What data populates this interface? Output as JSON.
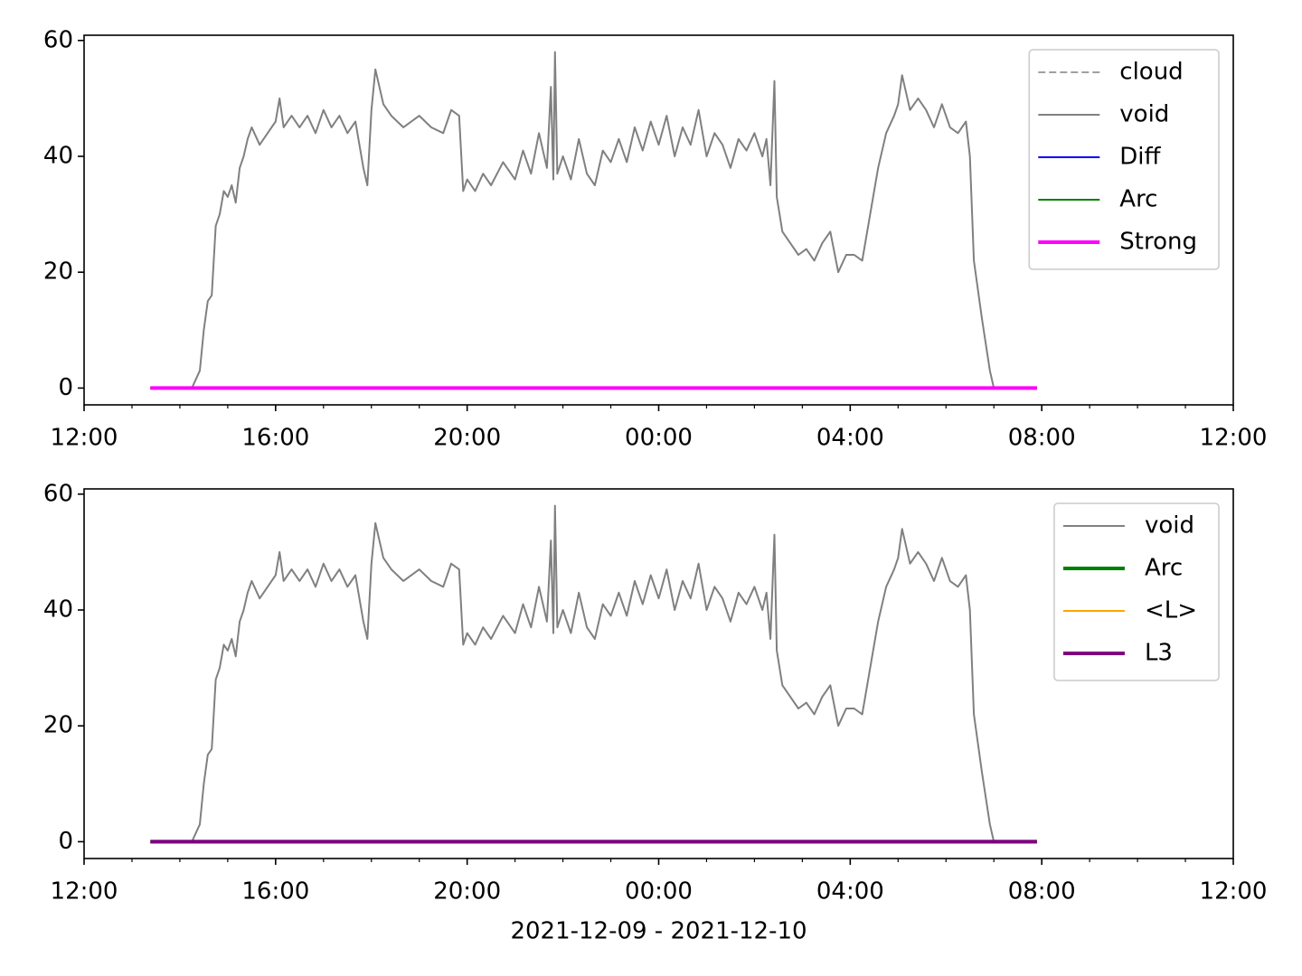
{
  "chart_data": [
    {
      "type": "line",
      "xlim": [
        "2021-12-09T12:00",
        "2021-12-10T12:00"
      ],
      "xticks": [
        {
          "value": "2021-12-09T12:00",
          "label": "12:00"
        },
        {
          "value": "2021-12-09T16:00",
          "label": "16:00"
        },
        {
          "value": "2021-12-09T20:00",
          "label": "20:00"
        },
        {
          "value": "2021-12-10T00:00",
          "label": "00:00"
        },
        {
          "value": "2021-12-10T04:00",
          "label": "04:00"
        },
        {
          "value": "2021-12-10T08:00",
          "label": "08:00"
        },
        {
          "value": "2021-12-10T12:00",
          "label": "12:00"
        }
      ],
      "xminorticks": [
        "2021-12-09T13:00",
        "2021-12-09T14:00",
        "2021-12-09T15:00",
        "2021-12-09T17:00",
        "2021-12-09T18:00",
        "2021-12-09T19:00",
        "2021-12-09T21:00",
        "2021-12-09T22:00",
        "2021-12-09T23:00",
        "2021-12-10T01:00",
        "2021-12-10T02:00",
        "2021-12-10T03:00",
        "2021-12-10T05:00",
        "2021-12-10T06:00",
        "2021-12-10T07:00",
        "2021-12-10T09:00",
        "2021-12-10T10:00",
        "2021-12-10T11:00"
      ],
      "ylim": [
        -2.9,
        60.9
      ],
      "yticks": [
        0,
        20,
        40,
        60
      ],
      "legend": "upper right",
      "series": [
        {
          "name": "cloud",
          "color": "#808080",
          "linewidth": 1.5,
          "linestyle": "dashed",
          "x": [
            "2021-12-09T13:23",
            "2021-12-10T07:54"
          ],
          "values": [
            0,
            0
          ]
        },
        {
          "name": "void",
          "color": "#808080",
          "linewidth": 2,
          "linestyle": "solid",
          "x": [
            "2021-12-09T13:23",
            "2021-12-09T14:00",
            "2021-12-09T14:15",
            "2021-12-09T14:25",
            "2021-12-09T14:30",
            "2021-12-09T14:35",
            "2021-12-09T14:40",
            "2021-12-09T14:45",
            "2021-12-09T14:50",
            "2021-12-09T14:55",
            "2021-12-09T15:00",
            "2021-12-09T15:05",
            "2021-12-09T15:10",
            "2021-12-09T15:15",
            "2021-12-09T15:20",
            "2021-12-09T15:25",
            "2021-12-09T15:30",
            "2021-12-09T15:40",
            "2021-12-09T15:50",
            "2021-12-09T16:00",
            "2021-12-09T16:05",
            "2021-12-09T16:10",
            "2021-12-09T16:20",
            "2021-12-09T16:30",
            "2021-12-09T16:40",
            "2021-12-09T16:50",
            "2021-12-09T17:00",
            "2021-12-09T17:10",
            "2021-12-09T17:20",
            "2021-12-09T17:30",
            "2021-12-09T17:40",
            "2021-12-09T17:50",
            "2021-12-09T17:55",
            "2021-12-09T18:00",
            "2021-12-09T18:05",
            "2021-12-09T18:15",
            "2021-12-09T18:25",
            "2021-12-09T18:40",
            "2021-12-09T19:00",
            "2021-12-09T19:15",
            "2021-12-09T19:30",
            "2021-12-09T19:40",
            "2021-12-09T19:50",
            "2021-12-09T19:55",
            "2021-12-09T20:00",
            "2021-12-09T20:10",
            "2021-12-09T20:20",
            "2021-12-09T20:30",
            "2021-12-09T20:45",
            "2021-12-09T21:00",
            "2021-12-09T21:10",
            "2021-12-09T21:20",
            "2021-12-09T21:30",
            "2021-12-09T21:40",
            "2021-12-09T21:45",
            "2021-12-09T21:48",
            "2021-12-09T21:50",
            "2021-12-09T21:53",
            "2021-12-09T22:00",
            "2021-12-09T22:10",
            "2021-12-09T22:20",
            "2021-12-09T22:30",
            "2021-12-09T22:40",
            "2021-12-09T22:50",
            "2021-12-09T23:00",
            "2021-12-09T23:10",
            "2021-12-09T23:20",
            "2021-12-09T23:30",
            "2021-12-09T23:40",
            "2021-12-09T23:50",
            "2021-12-10T00:00",
            "2021-12-10T00:10",
            "2021-12-10T00:20",
            "2021-12-10T00:30",
            "2021-12-10T00:40",
            "2021-12-10T00:50",
            "2021-12-10T01:00",
            "2021-12-10T01:10",
            "2021-12-10T01:20",
            "2021-12-10T01:30",
            "2021-12-10T01:40",
            "2021-12-10T01:50",
            "2021-12-10T02:00",
            "2021-12-10T02:10",
            "2021-12-10T02:15",
            "2021-12-10T02:20",
            "2021-12-10T02:25",
            "2021-12-10T02:28",
            "2021-12-10T02:35",
            "2021-12-10T02:45",
            "2021-12-10T02:55",
            "2021-12-10T03:05",
            "2021-12-10T03:15",
            "2021-12-10T03:25",
            "2021-12-10T03:35",
            "2021-12-10T03:45",
            "2021-12-10T03:55",
            "2021-12-10T04:05",
            "2021-12-10T04:15",
            "2021-12-10T04:25",
            "2021-12-10T04:35",
            "2021-12-10T04:45",
            "2021-12-10T04:55",
            "2021-12-10T05:00",
            "2021-12-10T05:05",
            "2021-12-10T05:15",
            "2021-12-10T05:25",
            "2021-12-10T05:35",
            "2021-12-10T05:45",
            "2021-12-10T05:55",
            "2021-12-10T06:05",
            "2021-12-10T06:15",
            "2021-12-10T06:25",
            "2021-12-10T06:30",
            "2021-12-10T06:35",
            "2021-12-10T06:45",
            "2021-12-10T06:55",
            "2021-12-10T07:00",
            "2021-12-10T07:54"
          ],
          "values": [
            0,
            0,
            0,
            3,
            10,
            15,
            16,
            28,
            30,
            34,
            33,
            35,
            32,
            38,
            40,
            43,
            45,
            42,
            44,
            46,
            50,
            45,
            47,
            45,
            47,
            44,
            48,
            45,
            47,
            44,
            46,
            38,
            35,
            48,
            55,
            49,
            47,
            45,
            47,
            45,
            44,
            48,
            47,
            34,
            36,
            34,
            37,
            35,
            39,
            36,
            41,
            37,
            44,
            38,
            52,
            36,
            58,
            37,
            40,
            36,
            43,
            37,
            35,
            41,
            39,
            43,
            39,
            45,
            41,
            46,
            42,
            47,
            40,
            45,
            42,
            48,
            40,
            44,
            42,
            38,
            43,
            41,
            44,
            40,
            43,
            35,
            53,
            33,
            27,
            25,
            23,
            24,
            22,
            25,
            27,
            20,
            23,
            23,
            22,
            30,
            38,
            44,
            47,
            49,
            54,
            48,
            50,
            48,
            45,
            49,
            45,
            44,
            46,
            40,
            22,
            12,
            3,
            0,
            0
          ]
        },
        {
          "name": "Diff",
          "color": "#0000ff",
          "linewidth": 2,
          "linestyle": "solid",
          "x": [
            "2021-12-09T13:23",
            "2021-12-10T07:54"
          ],
          "values": [
            0,
            0
          ]
        },
        {
          "name": "Arc",
          "color": "#008000",
          "linewidth": 2,
          "linestyle": "solid",
          "x": [
            "2021-12-09T13:23",
            "2021-12-10T07:54"
          ],
          "values": [
            0,
            0
          ]
        },
        {
          "name": "Strong",
          "color": "#ff00ff",
          "linewidth": 4,
          "linestyle": "solid",
          "x": [
            "2021-12-09T13:23",
            "2021-12-10T07:54"
          ],
          "values": [
            0,
            0
          ]
        }
      ]
    },
    {
      "type": "line",
      "x_label": "2021-12-09 - 2021-12-10",
      "xlim": [
        "2021-12-09T12:00",
        "2021-12-10T12:00"
      ],
      "xticks": [
        {
          "value": "2021-12-09T12:00",
          "label": "12:00"
        },
        {
          "value": "2021-12-09T16:00",
          "label": "16:00"
        },
        {
          "value": "2021-12-09T20:00",
          "label": "20:00"
        },
        {
          "value": "2021-12-10T00:00",
          "label": "00:00"
        },
        {
          "value": "2021-12-10T04:00",
          "label": "04:00"
        },
        {
          "value": "2021-12-10T08:00",
          "label": "08:00"
        },
        {
          "value": "2021-12-10T12:00",
          "label": "12:00"
        }
      ],
      "xminorticks": [
        "2021-12-09T13:00",
        "2021-12-09T14:00",
        "2021-12-09T15:00",
        "2021-12-09T17:00",
        "2021-12-09T18:00",
        "2021-12-09T19:00",
        "2021-12-09T21:00",
        "2021-12-09T22:00",
        "2021-12-09T23:00",
        "2021-12-10T01:00",
        "2021-12-10T02:00",
        "2021-12-10T03:00",
        "2021-12-10T05:00",
        "2021-12-10T06:00",
        "2021-12-10T07:00",
        "2021-12-10T09:00",
        "2021-12-10T10:00",
        "2021-12-10T11:00"
      ],
      "ylim": [
        -2.9,
        60.9
      ],
      "yticks": [
        0,
        20,
        40,
        60
      ],
      "legend": "upper right",
      "series": [
        {
          "name": "void",
          "color": "#808080",
          "linewidth": 2,
          "linestyle": "solid",
          "x": [
            "2021-12-09T13:23",
            "2021-12-09T14:00",
            "2021-12-09T14:15",
            "2021-12-09T14:25",
            "2021-12-09T14:30",
            "2021-12-09T14:35",
            "2021-12-09T14:40",
            "2021-12-09T14:45",
            "2021-12-09T14:50",
            "2021-12-09T14:55",
            "2021-12-09T15:00",
            "2021-12-09T15:05",
            "2021-12-09T15:10",
            "2021-12-09T15:15",
            "2021-12-09T15:20",
            "2021-12-09T15:25",
            "2021-12-09T15:30",
            "2021-12-09T15:40",
            "2021-12-09T15:50",
            "2021-12-09T16:00",
            "2021-12-09T16:05",
            "2021-12-09T16:10",
            "2021-12-09T16:20",
            "2021-12-09T16:30",
            "2021-12-09T16:40",
            "2021-12-09T16:50",
            "2021-12-09T17:00",
            "2021-12-09T17:10",
            "2021-12-09T17:20",
            "2021-12-09T17:30",
            "2021-12-09T17:40",
            "2021-12-09T17:50",
            "2021-12-09T17:55",
            "2021-12-09T18:00",
            "2021-12-09T18:05",
            "2021-12-09T18:15",
            "2021-12-09T18:25",
            "2021-12-09T18:40",
            "2021-12-09T19:00",
            "2021-12-09T19:15",
            "2021-12-09T19:30",
            "2021-12-09T19:40",
            "2021-12-09T19:50",
            "2021-12-09T19:55",
            "2021-12-09T20:00",
            "2021-12-09T20:10",
            "2021-12-09T20:20",
            "2021-12-09T20:30",
            "2021-12-09T20:45",
            "2021-12-09T21:00",
            "2021-12-09T21:10",
            "2021-12-09T21:20",
            "2021-12-09T21:30",
            "2021-12-09T21:40",
            "2021-12-09T21:45",
            "2021-12-09T21:48",
            "2021-12-09T21:50",
            "2021-12-09T21:53",
            "2021-12-09T22:00",
            "2021-12-09T22:10",
            "2021-12-09T22:20",
            "2021-12-09T22:30",
            "2021-12-09T22:40",
            "2021-12-09T22:50",
            "2021-12-09T23:00",
            "2021-12-09T23:10",
            "2021-12-09T23:20",
            "2021-12-09T23:30",
            "2021-12-09T23:40",
            "2021-12-09T23:50",
            "2021-12-10T00:00",
            "2021-12-10T00:10",
            "2021-12-10T00:20",
            "2021-12-10T00:30",
            "2021-12-10T00:40",
            "2021-12-10T00:50",
            "2021-12-10T01:00",
            "2021-12-10T01:10",
            "2021-12-10T01:20",
            "2021-12-10T01:30",
            "2021-12-10T01:40",
            "2021-12-10T01:50",
            "2021-12-10T02:00",
            "2021-12-10T02:10",
            "2021-12-10T02:15",
            "2021-12-10T02:20",
            "2021-12-10T02:25",
            "2021-12-10T02:28",
            "2021-12-10T02:35",
            "2021-12-10T02:45",
            "2021-12-10T02:55",
            "2021-12-10T03:05",
            "2021-12-10T03:15",
            "2021-12-10T03:25",
            "2021-12-10T03:35",
            "2021-12-10T03:45",
            "2021-12-10T03:55",
            "2021-12-10T04:05",
            "2021-12-10T04:15",
            "2021-12-10T04:25",
            "2021-12-10T04:35",
            "2021-12-10T04:45",
            "2021-12-10T04:55",
            "2021-12-10T05:00",
            "2021-12-10T05:05",
            "2021-12-10T05:15",
            "2021-12-10T05:25",
            "2021-12-10T05:35",
            "2021-12-10T05:45",
            "2021-12-10T05:55",
            "2021-12-10T06:05",
            "2021-12-10T06:15",
            "2021-12-10T06:25",
            "2021-12-10T06:30",
            "2021-12-10T06:35",
            "2021-12-10T06:45",
            "2021-12-10T06:55",
            "2021-12-10T07:00",
            "2021-12-10T07:54"
          ],
          "values": [
            0,
            0,
            0,
            3,
            10,
            15,
            16,
            28,
            30,
            34,
            33,
            35,
            32,
            38,
            40,
            43,
            45,
            42,
            44,
            46,
            50,
            45,
            47,
            45,
            47,
            44,
            48,
            45,
            47,
            44,
            46,
            38,
            35,
            48,
            55,
            49,
            47,
            45,
            47,
            45,
            44,
            48,
            47,
            34,
            36,
            34,
            37,
            35,
            39,
            36,
            41,
            37,
            44,
            38,
            52,
            36,
            58,
            37,
            40,
            36,
            43,
            37,
            35,
            41,
            39,
            43,
            39,
            45,
            41,
            46,
            42,
            47,
            40,
            45,
            42,
            48,
            40,
            44,
            42,
            38,
            43,
            41,
            44,
            40,
            43,
            35,
            53,
            33,
            27,
            25,
            23,
            24,
            22,
            25,
            27,
            20,
            23,
            23,
            22,
            30,
            38,
            44,
            47,
            49,
            54,
            48,
            50,
            48,
            45,
            49,
            45,
            44,
            46,
            40,
            22,
            12,
            3,
            0,
            0
          ]
        },
        {
          "name": "Arc",
          "color": "#008000",
          "linewidth": 4,
          "linestyle": "solid",
          "x": [
            "2021-12-09T13:23",
            "2021-12-10T07:54"
          ],
          "values": [
            0,
            0
          ]
        },
        {
          "name": "<L>",
          "color": "#ffa500",
          "linewidth": 2,
          "linestyle": "solid",
          "x": [
            "2021-12-09T13:23",
            "2021-12-10T07:54"
          ],
          "values": [
            0,
            0
          ]
        },
        {
          "name": "L3",
          "color": "#800080",
          "linewidth": 4,
          "linestyle": "solid",
          "x": [
            "2021-12-09T13:23",
            "2021-12-10T07:54"
          ],
          "values": [
            0,
            0
          ]
        }
      ]
    }
  ]
}
